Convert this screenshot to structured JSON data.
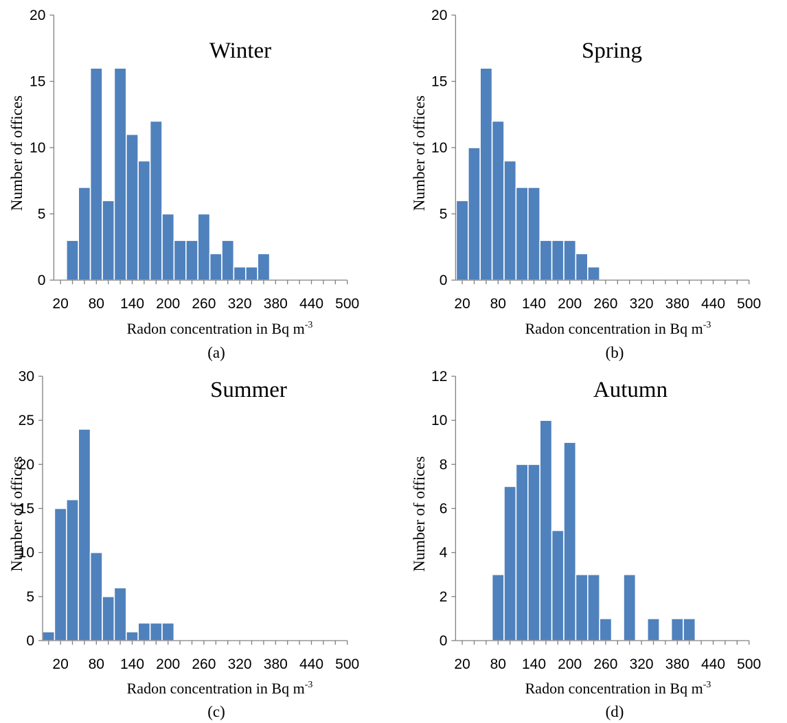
{
  "colors": {
    "bar_fill": "#4F81BD",
    "bar_outline": "#FFFFFF",
    "axis": "#808080"
  },
  "chart_data": [
    {
      "type": "bar",
      "title": "Winter",
      "panel_label": "(a)",
      "xlabel": "Radon concentration  in Bq m",
      "xlabel_sup": "-3",
      "ylabel": "Number of offices",
      "ylim": [
        0,
        20
      ],
      "yticks": [
        0,
        5,
        10,
        15,
        20
      ],
      "xticks": [
        20,
        80,
        140,
        200,
        260,
        320,
        380,
        440,
        500
      ],
      "bin_width": 20,
      "bins": [
        20,
        40,
        60,
        80,
        100,
        120,
        140,
        160,
        180,
        200,
        220,
        240,
        260,
        280,
        300,
        320,
        340,
        360,
        380,
        400,
        420,
        440,
        460,
        480,
        500
      ],
      "values": [
        0,
        3,
        7,
        16,
        6,
        16,
        11,
        9,
        12,
        5,
        3,
        3,
        5,
        2,
        3,
        1,
        1,
        2,
        0,
        0,
        0,
        0,
        0,
        0,
        0
      ]
    },
    {
      "type": "bar",
      "title": "Spring",
      "panel_label": "(b)",
      "xlabel": "Radon concentration  in Bq m",
      "xlabel_sup": "-3",
      "ylabel": "Number of offices",
      "ylim": [
        0,
        20
      ],
      "yticks": [
        0,
        5,
        10,
        15,
        20
      ],
      "xticks": [
        20,
        80,
        140,
        200,
        260,
        320,
        380,
        440,
        500
      ],
      "bin_width": 20,
      "bins": [
        20,
        40,
        60,
        80,
        100,
        120,
        140,
        160,
        180,
        200,
        220,
        240,
        260,
        280,
        300,
        320,
        340,
        360,
        380,
        400,
        420,
        440,
        460,
        480,
        500
      ],
      "values": [
        6,
        10,
        16,
        12,
        9,
        7,
        7,
        3,
        3,
        3,
        2,
        1,
        0,
        0,
        0,
        0,
        0,
        0,
        0,
        0,
        0,
        0,
        0,
        0,
        0
      ]
    },
    {
      "type": "bar",
      "title": "Summer",
      "panel_label": "(c)",
      "xlabel": "Radon concentration  in Bq m",
      "xlabel_sup": "-3",
      "ylabel": "Number of offices",
      "ylim": [
        0,
        30
      ],
      "yticks": [
        0,
        5,
        10,
        15,
        20,
        25,
        30
      ],
      "xticks": [
        20,
        80,
        140,
        200,
        260,
        320,
        380,
        440,
        500
      ],
      "bin_width": 20,
      "bins": [
        0,
        20,
        40,
        60,
        80,
        100,
        120,
        140,
        160,
        180,
        200,
        220,
        240,
        260,
        280,
        300,
        320,
        340,
        360,
        380,
        400,
        420,
        440,
        460,
        480,
        500
      ],
      "values": [
        1,
        15,
        16,
        24,
        10,
        5,
        6,
        1,
        2,
        2,
        2,
        0,
        0,
        0,
        0,
        0,
        0,
        0,
        0,
        0,
        0,
        0,
        0,
        0,
        0,
        0
      ]
    },
    {
      "type": "bar",
      "title": "Autumn",
      "panel_label": "(d)",
      "xlabel": "Radon concentration  in Bq m",
      "xlabel_sup": "-3",
      "ylabel": "Number of offices",
      "ylim": [
        0,
        12
      ],
      "yticks": [
        0,
        2,
        4,
        6,
        8,
        10,
        12
      ],
      "xticks": [
        20,
        80,
        140,
        200,
        260,
        320,
        380,
        440,
        500
      ],
      "bin_width": 20,
      "bins": [
        20,
        40,
        60,
        80,
        100,
        120,
        140,
        160,
        180,
        200,
        220,
        240,
        260,
        280,
        300,
        320,
        340,
        360,
        380,
        400,
        420,
        440,
        460,
        480,
        500
      ],
      "values": [
        0,
        0,
        0,
        3,
        7,
        8,
        8,
        10,
        5,
        9,
        3,
        3,
        1,
        0,
        3,
        0,
        1,
        0,
        1,
        1,
        0,
        0,
        0,
        0,
        0
      ]
    }
  ]
}
